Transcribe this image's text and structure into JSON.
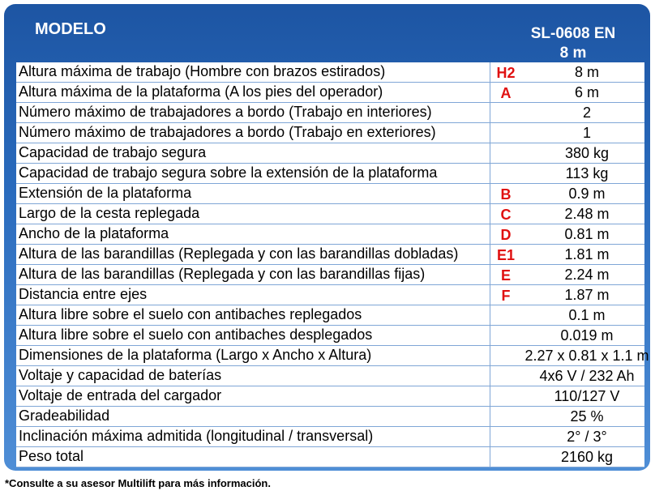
{
  "header": {
    "model_label": "MODELO",
    "model": "SL-0608 EN",
    "model_height": "8 m"
  },
  "rows": [
    {
      "label": "Altura máxima de trabajo (Hombre con brazos estirados)",
      "letter": "H2",
      "value": "8 m"
    },
    {
      "label": "Altura máxima de la plataforma (A los pies del operador)",
      "letter": "A",
      "value": "6 m"
    },
    {
      "label": "Número máximo de trabajadores a bordo (Trabajo en interiores)",
      "value": "2"
    },
    {
      "label": "Número máximo de trabajadores a bordo (Trabajo en exteriores)",
      "value": "1"
    },
    {
      "label": "Capacidad de trabajo segura",
      "value": "380 kg"
    },
    {
      "label": "Capacidad de trabajo segura sobre la extensión de la plataforma",
      "value": "113 kg"
    },
    {
      "label": "Extensión de la plataforma",
      "letter": "B",
      "value": "0.9 m"
    },
    {
      "label": "Largo de la cesta replegada",
      "letter": "C",
      "value": "2.48 m"
    },
    {
      "label": "Ancho de la plataforma",
      "letter": "D",
      "value": "0.81 m"
    },
    {
      "label": "Altura de las barandillas (Replegada y con las barandillas dobladas)",
      "letter": "E1",
      "value": "1.81 m"
    },
    {
      "label": "Altura de las barandillas (Replegada y con las barandillas fijas)",
      "letter": "E",
      "value": "2.24 m"
    },
    {
      "label": "Distancia entre ejes",
      "letter": "F",
      "value": "1.87 m"
    },
    {
      "label": "Altura libre sobre el suelo con antibaches replegados",
      "value": "0.1 m"
    },
    {
      "label": "Altura libre sobre el suelo con antibaches desplegados",
      "value": "0.019 m"
    },
    {
      "label": "Dimensiones de la plataforma (Largo x Ancho x Altura)",
      "value": "2.27 x 0.81 x 1.1 m"
    },
    {
      "label": "Voltaje y capacidad de baterías",
      "value": "4x6 V / 232 Ah"
    },
    {
      "label": "Voltaje de entrada del cargador",
      "value": "110/127 V"
    },
    {
      "label": "Gradeabilidad",
      "value": "25 %"
    },
    {
      "label": "Inclinación máxima admitida (longitudinal / transversal)",
      "value": "2° / 3°"
    },
    {
      "label": "Peso total",
      "value": "2160 kg"
    }
  ],
  "footnote": "*Consulte a su asesor Multilift para más información."
}
